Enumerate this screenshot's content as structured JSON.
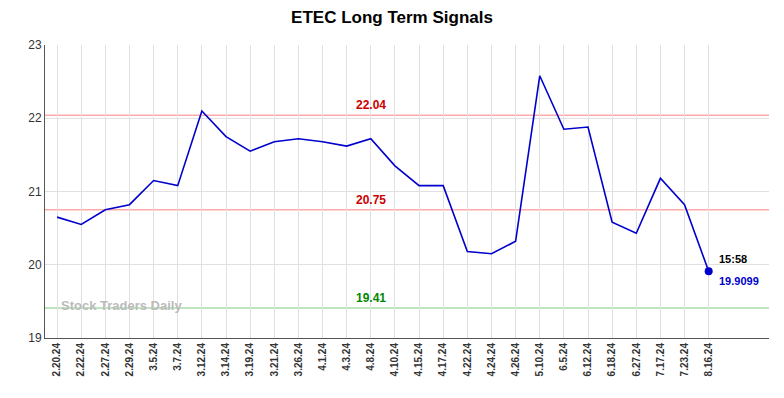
{
  "chart_data": {
    "type": "line",
    "title": "ETEC Long Term Signals",
    "categories": [
      "2.20.24",
      "2.22.24",
      "2.27.24",
      "2.29.24",
      "3.5.24",
      "3.7.24",
      "3.12.24",
      "3.14.24",
      "3.19.24",
      "3.21.24",
      "3.26.24",
      "4.1.24",
      "4.3.24",
      "4.8.24",
      "4.10.24",
      "4.15.24",
      "4.17.24",
      "4.22.24",
      "4.24.24",
      "4.26.24",
      "5.10.24",
      "6.5.24",
      "6.12.24",
      "6.18.24",
      "6.27.24",
      "7.17.24",
      "7.23.24",
      "8.16.24"
    ],
    "values": [
      20.65,
      20.55,
      20.75,
      20.82,
      21.15,
      21.08,
      22.1,
      21.75,
      21.55,
      21.68,
      21.72,
      21.68,
      21.62,
      21.72,
      21.35,
      21.08,
      21.08,
      20.18,
      20.15,
      20.32,
      22.58,
      21.85,
      21.88,
      20.58,
      20.43,
      21.18,
      20.82,
      19.91
    ],
    "color": "#0000cc",
    "ylim": [
      19.0,
      23.0
    ],
    "yticks": [
      19,
      20,
      21,
      22,
      23
    ],
    "grid": true,
    "grid_color": "#e0e0e0",
    "background": "#ffffff",
    "hlines": [
      {
        "y": 22.04,
        "color": "#ffaaaa",
        "label": "22.04",
        "label_color": "#cc0000",
        "label_at": "4.8.24"
      },
      {
        "y": 20.75,
        "color": "#ffaaaa",
        "label": "20.75",
        "label_color": "#cc0000",
        "label_at": "4.8.24"
      },
      {
        "y": 19.41,
        "color": "#aaddaa",
        "label": "19.41",
        "label_color": "#008800",
        "label_at": "4.8.24"
      }
    ],
    "last_point": {
      "marker_color": "#0000cc",
      "time": "15:58",
      "time_color": "#000000",
      "price": "19.9099",
      "price_color": "#0000cc"
    },
    "watermark": {
      "text": "Stock Traders Daily",
      "color": "#bbbbbb"
    }
  }
}
